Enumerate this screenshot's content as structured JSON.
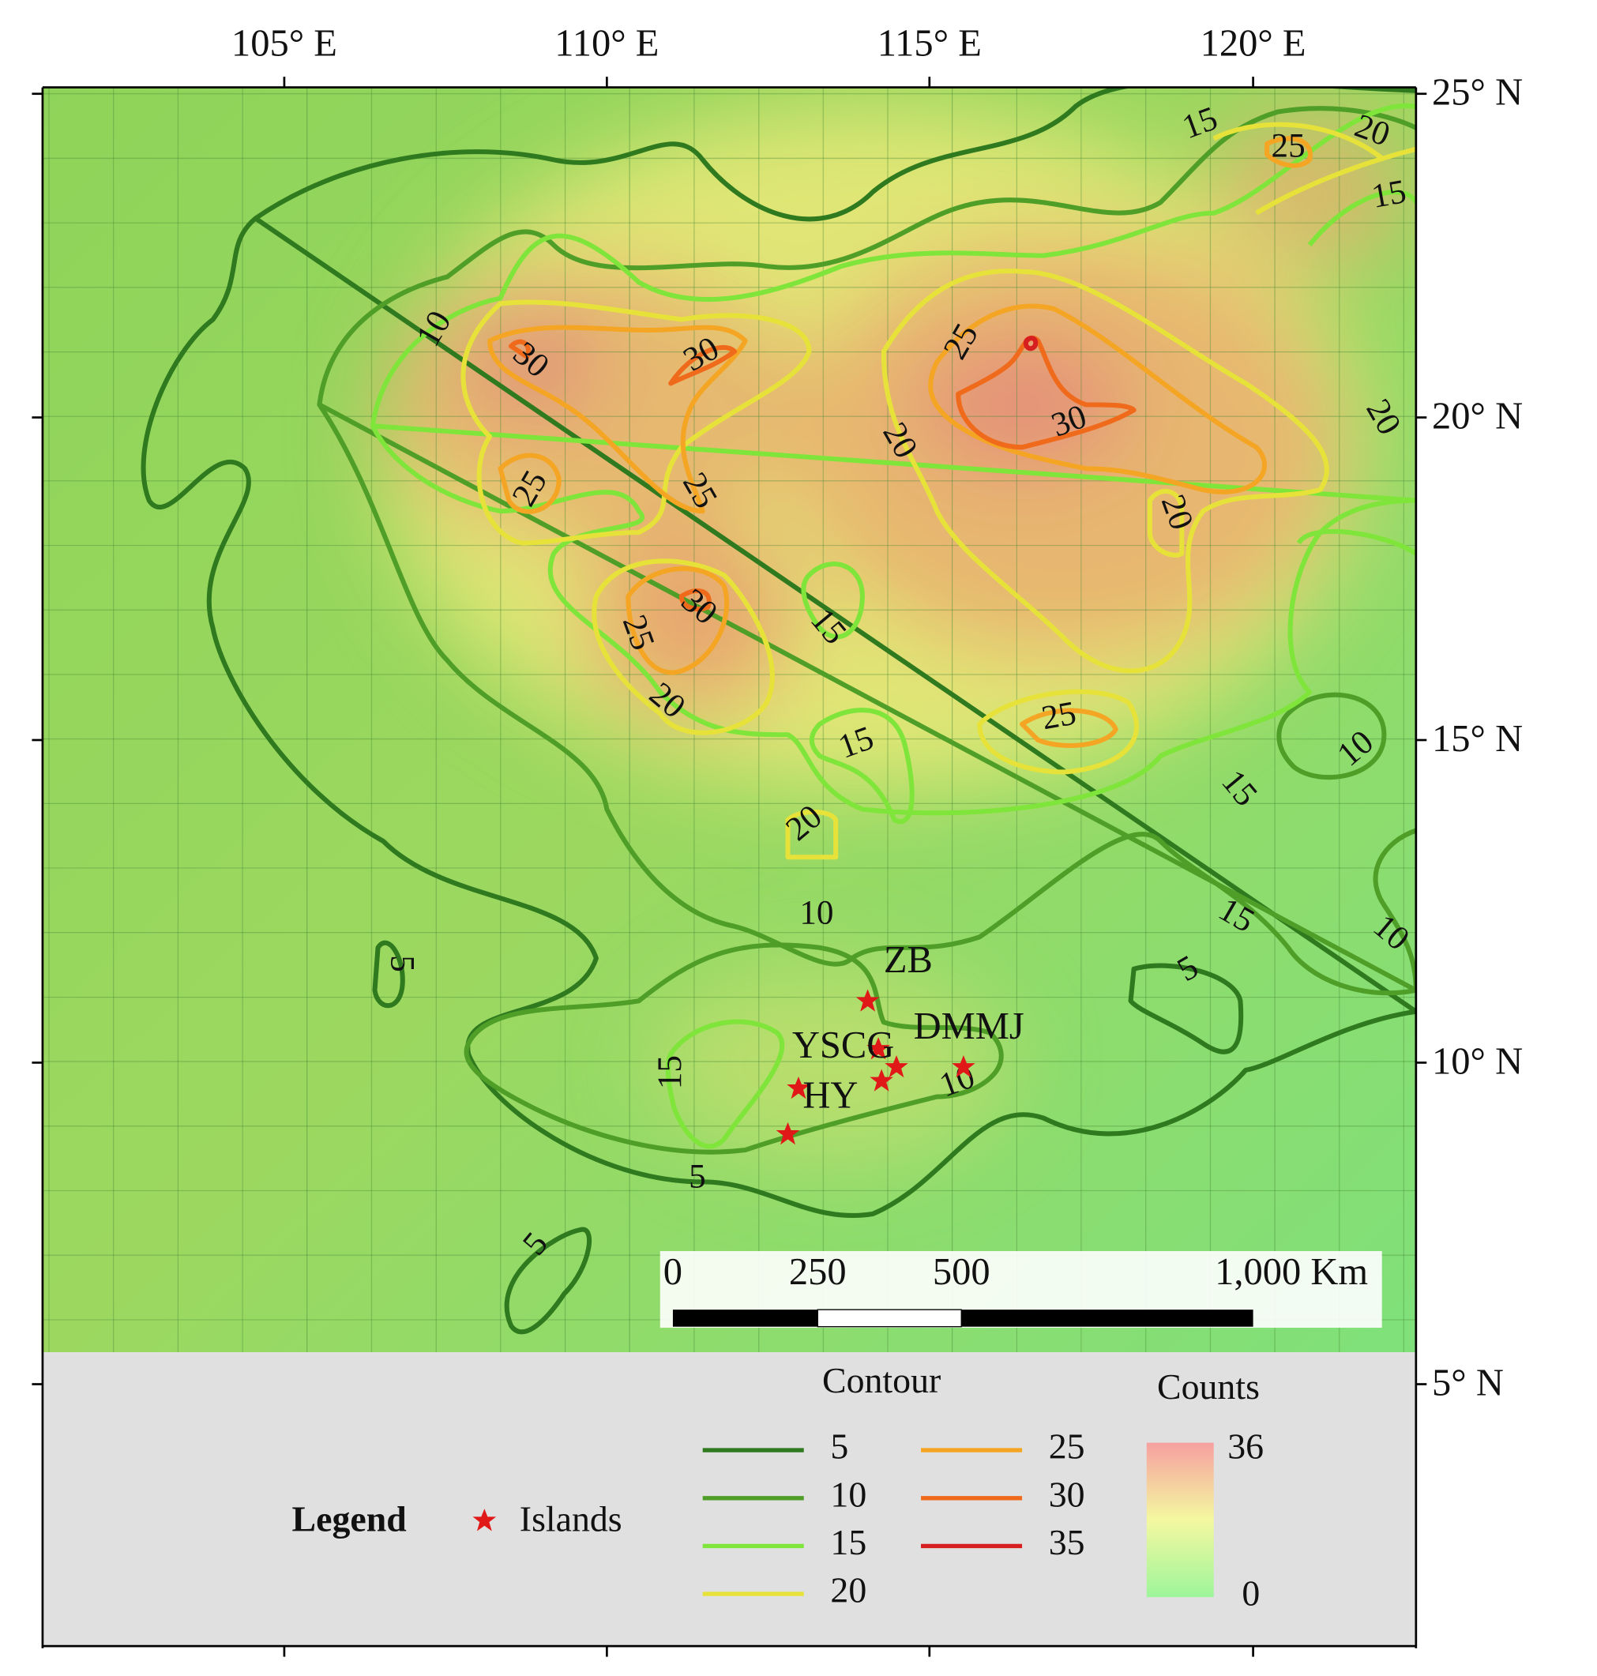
{
  "axes": {
    "longitude_labels": [
      "105° E",
      "110° E",
      "115° E",
      "120° E"
    ],
    "latitude_labels": [
      "25° N",
      "20° N",
      "15° N",
      "10° N",
      "5° N"
    ]
  },
  "contour_labels": [
    "15",
    "25",
    "20",
    "15",
    "10",
    "30",
    "30",
    "25",
    "30",
    "20",
    "20",
    "25",
    "25",
    "20",
    "30",
    "25",
    "15",
    "20",
    "25",
    "15",
    "10",
    "15",
    "20",
    "10",
    "15",
    "10",
    "5",
    "5",
    "15",
    "10",
    "5",
    "5"
  ],
  "islands": {
    "labels": [
      "ZB",
      "YSCG",
      "DMMJ",
      "HY"
    ]
  },
  "scale_bar": {
    "labels": [
      "0",
      "250",
      "500",
      "1,000 Km"
    ]
  },
  "legend": {
    "title": "Legend",
    "islands": "Islands",
    "contour_title": "Contour",
    "contour_levels": [
      "5",
      "10",
      "15",
      "20",
      "25",
      "30",
      "35"
    ],
    "counts_title": "Counts",
    "counts_max": "36",
    "counts_min": "0"
  }
}
